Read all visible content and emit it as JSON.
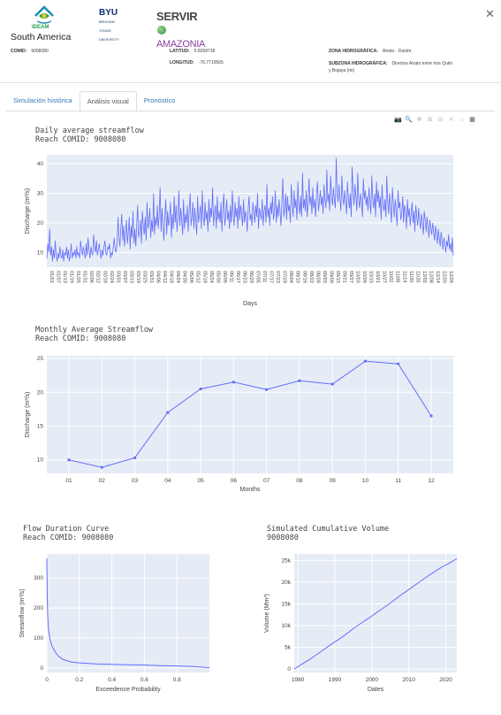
{
  "header": {
    "logos": {
      "ideam": "IDEAM",
      "byu_main": "BYU",
      "byu_sub": "BRIGHAM YOUNG UNIVERSITY",
      "servir_1": "SERVIR",
      "servir_2": "AMAZONIA"
    },
    "title": "South America",
    "comid_label": "COMID:",
    "comid_value": "9008080",
    "lat_label": "LATITUD:",
    "lat_value": "5.8268718",
    "lon_label": "LONGITUD:",
    "lon_value": "-76.7719565",
    "zona_label": "ZONA HIDROGRÁFICA:",
    "zona_value": "Atrato - Darién",
    "subzona_label": "SUBZONA HIDROGRÁFICA:",
    "subzona_value_1": "Directos Atrato entre ríos Quito",
    "subzona_value_2": "y Bojaya (mi)"
  },
  "tabs": [
    {
      "label": "Simulación histórica"
    },
    {
      "label": "Análisis visual"
    },
    {
      "label": "Pronóstico"
    }
  ],
  "icons": {
    "close": "close-icon",
    "camera": "camera-icon",
    "zoom": "zoom-icon",
    "pan": "pan-icon",
    "zoom_in": "zoom-in-icon",
    "zoom_out": "zoom-out-icon",
    "autoscale": "autoscale-icon",
    "reset": "home-icon",
    "table": "table-icon"
  },
  "colors": {
    "line": "#636efa",
    "plot_bg": "#e5ecf6",
    "link": "#337ab7"
  },
  "chart_data": [
    {
      "id": "daily",
      "type": "line",
      "title": "Daily average streamflow",
      "subtitle": "Reach COMID: 9008080",
      "xlabel": "Days",
      "ylabel": "Discharge (m³/s)",
      "ylim": [
        5,
        43
      ],
      "yticks": [
        10,
        20,
        30,
        40
      ],
      "grid": true,
      "x_ticks": [
        "01/01",
        "01/07",
        "01/13",
        "01/19",
        "01/25",
        "01/31",
        "02/06",
        "02/12",
        "02/18",
        "02/24",
        "03/01",
        "03/07",
        "03/13",
        "03/19",
        "03/25",
        "03/31",
        "04/06",
        "04/12",
        "04/18",
        "04/24",
        "04/30",
        "05/06",
        "05/12",
        "05/18",
        "05/24",
        "05/30",
        "06/05",
        "06/11",
        "06/17",
        "06/23",
        "06/29",
        "07/05",
        "07/11",
        "07/17",
        "07/23",
        "07/29",
        "08/04",
        "08/10",
        "08/16",
        "08/22",
        "08/28",
        "09/03",
        "09/09",
        "09/15",
        "09/21",
        "09/27",
        "10/03",
        "10/09",
        "10/15",
        "10/21",
        "10/27",
        "11/02",
        "11/08",
        "11/14",
        "11/20",
        "11/26",
        "12/02",
        "12/08",
        "12/14",
        "12/20",
        "12/26"
      ],
      "values": [
        8,
        13,
        10,
        18,
        9,
        12,
        7,
        11,
        8,
        14,
        9,
        7,
        10,
        8,
        12,
        9,
        8,
        11,
        7,
        10,
        9,
        12,
        8,
        11,
        7,
        9,
        13,
        8,
        10,
        9,
        11,
        8,
        12,
        9,
        10,
        8,
        14,
        11,
        9,
        12,
        10,
        8,
        13,
        9,
        15,
        11,
        8,
        12,
        10,
        9,
        16,
        12,
        10,
        14,
        9,
        11,
        13,
        10,
        8,
        11,
        9,
        12,
        14,
        10,
        9,
        12,
        11,
        13,
        8,
        10,
        9,
        12,
        15,
        11,
        10,
        13,
        22,
        15,
        12,
        18,
        23,
        14,
        19,
        12,
        16,
        21,
        13,
        17,
        22,
        11,
        19,
        15,
        24,
        13,
        18,
        12,
        20,
        26,
        15,
        17,
        21,
        13,
        24,
        19,
        16,
        22,
        14,
        27,
        18,
        20,
        25,
        15,
        21,
        17,
        30,
        16,
        22,
        19,
        26,
        18,
        23,
        32,
        17,
        25,
        20,
        14,
        22,
        28,
        16,
        24,
        19,
        21,
        27,
        15,
        23,
        18,
        29,
        20,
        26,
        17,
        22,
        31,
        19,
        25,
        21,
        16,
        28,
        18,
        23,
        20,
        26,
        17,
        24,
        30,
        19,
        22,
        27,
        18,
        25,
        21,
        16,
        29,
        20,
        23,
        26,
        18,
        31,
        22,
        19,
        27,
        21,
        24,
        17,
        28,
        20,
        25,
        22,
        32,
        19,
        23,
        26,
        18,
        29,
        21,
        24,
        20,
        27,
        17,
        25,
        30,
        19,
        22,
        28,
        21,
        24,
        18,
        26,
        20,
        31,
        23,
        19,
        27,
        22,
        25,
        18,
        29,
        21,
        26,
        23,
        19,
        28,
        20,
        24,
        22,
        17,
        25,
        29,
        21,
        23,
        19,
        27,
        24,
        20,
        26,
        22,
        30,
        18,
        25,
        23,
        21,
        28,
        19,
        24,
        26,
        20,
        33,
        22,
        25,
        19,
        27,
        23,
        29,
        21,
        24,
        31,
        20,
        26,
        22,
        28,
        24,
        19,
        27,
        35,
        22,
        25,
        30,
        21,
        29,
        24,
        26,
        20,
        33,
        27,
        22,
        31,
        25,
        28,
        21,
        34,
        26,
        23,
        29,
        22,
        37,
        25,
        28,
        24,
        31,
        22,
        27,
        35,
        26,
        29,
        23,
        32,
        25,
        28,
        22,
        30,
        34,
        24,
        27,
        31,
        26,
        29,
        23,
        33,
        28,
        25,
        38,
        27,
        30,
        24,
        36,
        29,
        26,
        32,
        28,
        25,
        42,
        30,
        27,
        33,
        28,
        24,
        36,
        29,
        26,
        31,
        27,
        23,
        34,
        28,
        25,
        30,
        22,
        39,
        31,
        26,
        33,
        29,
        24,
        37,
        28,
        25,
        30,
        27,
        22,
        35,
        28,
        31,
        26,
        29,
        24,
        32,
        27,
        23,
        36,
        28,
        25,
        30,
        22,
        34,
        27,
        31,
        25,
        29,
        21,
        33,
        26,
        24,
        28,
        22,
        36,
        27,
        23,
        30,
        25,
        20,
        32,
        26,
        22,
        28,
        24,
        19,
        31,
        25,
        27,
        21,
        23,
        29,
        20,
        26,
        24,
        18,
        28,
        22,
        25,
        19,
        23,
        27,
        20,
        24,
        17,
        26,
        22,
        19,
        25,
        21,
        18,
        23,
        20,
        16,
        24,
        21,
        17,
        22,
        19,
        15,
        21,
        18,
        16,
        20,
        17,
        14,
        19,
        16,
        13,
        18,
        15,
        12,
        17,
        14,
        11,
        15,
        13,
        10,
        14,
        12,
        16,
        11,
        13,
        10,
        15,
        9
      ]
    },
    {
      "id": "monthly",
      "type": "line",
      "title": "Monthly Average Streamflow",
      "subtitle": "Reach COMID: 9008080",
      "xlabel": "Months",
      "ylabel": "Discharge (m³/s)",
      "ylim": [
        8,
        25.4
      ],
      "yticks": [
        10,
        15,
        20,
        25
      ],
      "grid": true,
      "categories": [
        "01",
        "02",
        "03",
        "04",
        "05",
        "06",
        "07",
        "08",
        "09",
        "10",
        "11",
        "12"
      ],
      "values": [
        10.0,
        8.9,
        10.3,
        17.0,
        20.5,
        21.5,
        20.4,
        21.7,
        21.2,
        24.6,
        24.2,
        16.5
      ]
    },
    {
      "id": "fdc",
      "type": "line",
      "title": "Flow Duration Curve",
      "subtitle": "Reach COMID: 9008080",
      "xlabel": "Exceedence Probability",
      "ylabel": "Streamflow (m³/s)",
      "xlim": [
        0,
        1
      ],
      "ylim": [
        -15,
        380
      ],
      "xticks": [
        0,
        0.2,
        0.4,
        0.6,
        0.8
      ],
      "xtick_labels": [
        "0",
        "0.2",
        "0.4",
        "0.6",
        "0.8"
      ],
      "yticks": [
        0,
        100,
        200,
        300
      ],
      "grid": true,
      "x": [
        0,
        0.002,
        0.005,
        0.01,
        0.02,
        0.03,
        0.05,
        0.07,
        0.1,
        0.15,
        0.2,
        0.3,
        0.4,
        0.5,
        0.6,
        0.7,
        0.8,
        0.9,
        0.95,
        1.0
      ],
      "values": [
        365,
        250,
        180,
        130,
        95,
        75,
        55,
        40,
        28,
        20,
        17,
        14,
        12,
        11,
        10,
        8,
        7,
        5,
        3,
        1
      ]
    },
    {
      "id": "cumulative",
      "type": "line",
      "title": "Simulated Cumulative Volume",
      "subtitle": "9008080",
      "xlabel": "Dates",
      "ylabel": "Volume (Mm³)",
      "xlim": [
        1979,
        2023
      ],
      "ylim": [
        -800,
        26500
      ],
      "xticks": [
        1980,
        1990,
        2000,
        2010,
        2020
      ],
      "yticks": [
        0,
        5000,
        10000,
        15000,
        20000,
        25000
      ],
      "ytick_labels": [
        "0",
        "5k",
        "10k",
        "15k",
        "20k",
        "25k"
      ],
      "grid": true,
      "x": [
        1979,
        1981,
        1983,
        1985,
        1987,
        1989,
        1991,
        1993,
        1995,
        1997,
        1999,
        2001,
        2003,
        2005,
        2007,
        2009,
        2011,
        2013,
        2015,
        2017,
        2019,
        2021,
        2023
      ],
      "values": [
        0,
        1100,
        2100,
        3300,
        4500,
        5700,
        6800,
        8000,
        9300,
        10500,
        11600,
        12800,
        14000,
        15200,
        16500,
        17700,
        18900,
        20100,
        21300,
        22400,
        23500,
        24400,
        25400
      ]
    }
  ]
}
